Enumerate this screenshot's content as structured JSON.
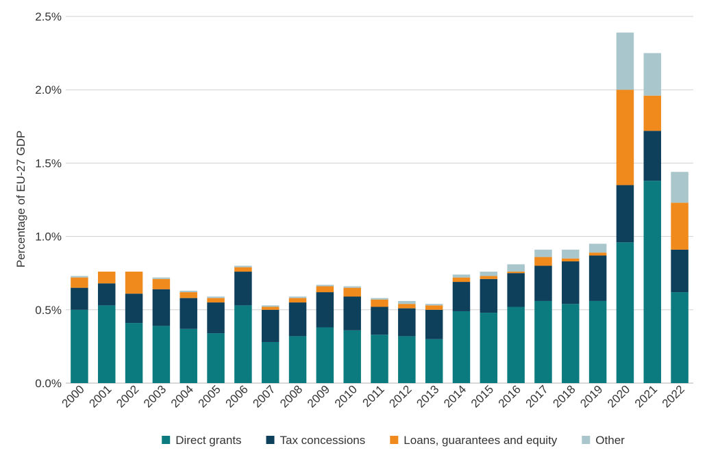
{
  "chart_data": {
    "type": "bar",
    "stacked": true,
    "title": "",
    "xlabel": "",
    "ylabel": "Percentage of EU-27 GDP",
    "ylim": [
      0,
      2.5
    ],
    "yticks": [
      0,
      0.5,
      1.0,
      1.5,
      2.0,
      2.5
    ],
    "ytick_labels": [
      "0.0%",
      "0.5%",
      "1.0%",
      "1.5%",
      "2.0%",
      "2.5%"
    ],
    "grid": true,
    "legend_position": "bottom",
    "categories": [
      "2000",
      "2001",
      "2002",
      "2003",
      "2004",
      "2005",
      "2006",
      "2007",
      "2008",
      "2009",
      "2010",
      "2011",
      "2012",
      "2013",
      "2014",
      "2015",
      "2016",
      "2017",
      "2018",
      "2019",
      "2020",
      "2021",
      "2022"
    ],
    "series": [
      {
        "name": "Direct grants",
        "color": "#0b7b80",
        "values": [
          0.5,
          0.53,
          0.41,
          0.39,
          0.37,
          0.34,
          0.53,
          0.28,
          0.32,
          0.38,
          0.36,
          0.33,
          0.32,
          0.3,
          0.49,
          0.48,
          0.52,
          0.56,
          0.54,
          0.56,
          0.96,
          1.38,
          0.62
        ]
      },
      {
        "name": "Tax concessions",
        "color": "#0e3f5b",
        "values": [
          0.15,
          0.15,
          0.2,
          0.25,
          0.21,
          0.21,
          0.23,
          0.22,
          0.23,
          0.24,
          0.23,
          0.19,
          0.19,
          0.2,
          0.2,
          0.23,
          0.23,
          0.24,
          0.29,
          0.31,
          0.39,
          0.34,
          0.29
        ]
      },
      {
        "name": "Loans, guarantees and equity",
        "color": "#f08a1c",
        "values": [
          0.07,
          0.08,
          0.15,
          0.07,
          0.04,
          0.03,
          0.03,
          0.02,
          0.03,
          0.04,
          0.06,
          0.05,
          0.03,
          0.03,
          0.03,
          0.02,
          0.01,
          0.06,
          0.02,
          0.02,
          0.65,
          0.24,
          0.32
        ]
      },
      {
        "name": "Other",
        "color": "#a9c6cc",
        "values": [
          0.01,
          0.0,
          0.0,
          0.01,
          0.01,
          0.01,
          0.01,
          0.01,
          0.01,
          0.01,
          0.01,
          0.01,
          0.02,
          0.01,
          0.02,
          0.03,
          0.05,
          0.05,
          0.06,
          0.06,
          0.39,
          0.29,
          0.21
        ]
      }
    ]
  }
}
